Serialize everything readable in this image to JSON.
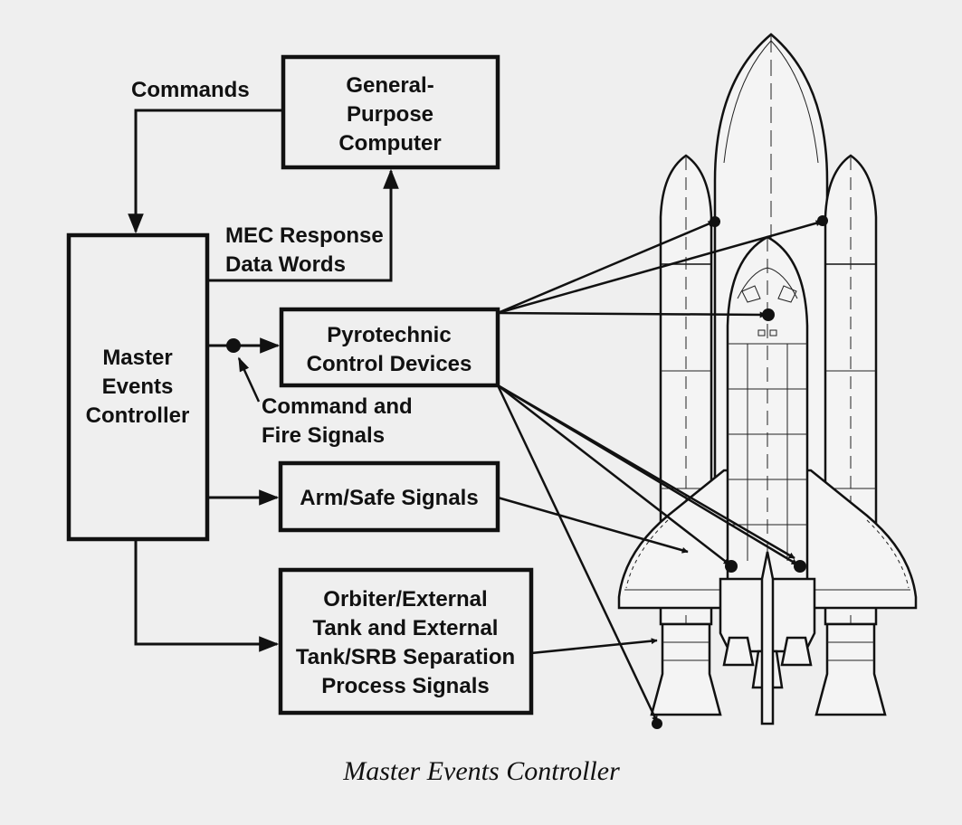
{
  "boxes": {
    "gpc": [
      "General-",
      "Purpose",
      "Computer"
    ],
    "mec": [
      "Master",
      "Events",
      "Controller"
    ],
    "pyro": [
      "Pyrotechnic",
      "Control Devices"
    ],
    "arm": [
      "Arm/Safe Signals"
    ],
    "sep": [
      "Orbiter/External",
      "Tank and External",
      "Tank/SRB Separation",
      "Process Signals"
    ]
  },
  "labels": {
    "commands": "Commands",
    "mec_response": [
      "MEC Response",
      "Data Words"
    ],
    "command_fire": [
      "Command and",
      "Fire Signals"
    ]
  },
  "caption": "Master Events Controller"
}
